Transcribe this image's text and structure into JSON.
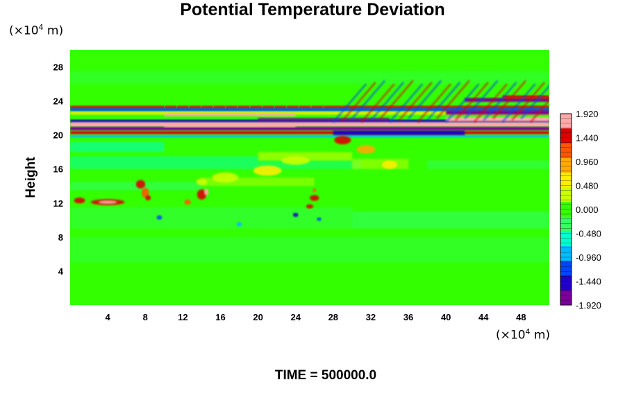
{
  "chart_data": {
    "type": "heatmap",
    "title": "Potential Temperature Deviation",
    "ylabel": "Height",
    "xlabel": "",
    "x_unit": "(×10",
    "y_unit": "(×10",
    "unit_exponent": "4",
    "unit_suffix": " m)",
    "xlim": [
      0,
      51
    ],
    "ylim": [
      0,
      30
    ],
    "x_ticks": [
      "4",
      "8",
      "12",
      "16",
      "20",
      "24",
      "28",
      "32",
      "36",
      "40",
      "44",
      "48"
    ],
    "y_ticks": [
      "4",
      "8",
      "12",
      "16",
      "20",
      "24",
      "28"
    ],
    "x_tick_values": [
      4,
      8,
      12,
      16,
      20,
      24,
      28,
      32,
      36,
      40,
      44,
      48
    ],
    "y_tick_values": [
      4,
      8,
      12,
      16,
      20,
      24,
      28
    ],
    "colorbar": {
      "min": -1.92,
      "max": 1.92,
      "tick_labels": [
        "1.920",
        "1.440",
        "0.960",
        "0.480",
        "0.000",
        "-0.480",
        "-0.960",
        "-1.440",
        "-1.920"
      ],
      "tick_values": [
        1.92,
        1.44,
        0.96,
        0.48,
        0.0,
        -0.48,
        -0.96,
        -1.44,
        -1.92
      ]
    },
    "colors": [
      "#7a0099",
      "#2200cc",
      "#0044ff",
      "#00bbff",
      "#00ffd0",
      "#33ff66",
      "#33ff00",
      "#ccff00",
      "#ffee00",
      "#ffaa00",
      "#ff5500",
      "#dd0000",
      "#ffaaaa"
    ],
    "time_label": "TIME = 500000.0"
  }
}
